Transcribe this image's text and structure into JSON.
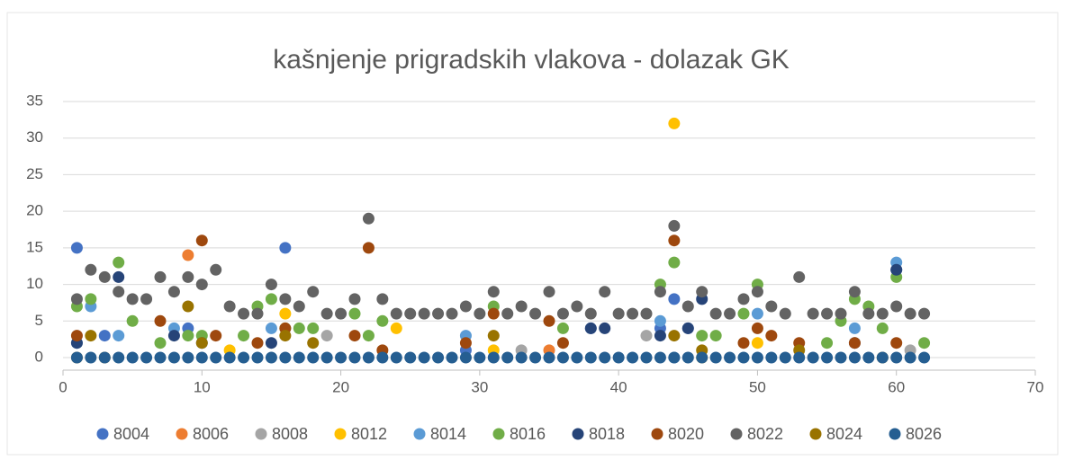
{
  "chart_data": {
    "type": "scatter",
    "title": "kašnjenje prigradskih vlakova - dolazak GK",
    "xlim": [
      0,
      70
    ],
    "xticks": [
      0,
      10,
      20,
      30,
      40,
      50,
      60,
      70
    ],
    "ylim": [
      0,
      35
    ],
    "yticks": [
      0,
      5,
      10,
      15,
      20,
      25,
      30,
      35
    ],
    "grid": true,
    "legend": "bottom",
    "series": [
      {
        "name": "8004",
        "color": "#4472c4",
        "x": [
          1,
          3,
          9,
          16,
          29,
          38,
          43,
          44,
          45,
          60
        ],
        "values": [
          15,
          3,
          4,
          15,
          1,
          4,
          4,
          8,
          4,
          12
        ]
      },
      {
        "name": "8006",
        "color": "#ed7d31",
        "x": [
          9,
          35
        ],
        "values": [
          14,
          1
        ]
      },
      {
        "name": "8008",
        "color": "#a5a5a5",
        "x": [
          19,
          33,
          42,
          61
        ],
        "values": [
          3,
          1,
          3,
          1
        ]
      },
      {
        "name": "8012",
        "color": "#ffc000",
        "x": [
          12,
          16,
          24,
          31,
          44,
          46,
          50
        ],
        "values": [
          1,
          6,
          4,
          1,
          32,
          0,
          2
        ]
      },
      {
        "name": "8014",
        "color": "#5b9bd5",
        "x": [
          1,
          2,
          4,
          8,
          15,
          29,
          43,
          44,
          50,
          57,
          60
        ],
        "values": [
          2,
          7,
          3,
          4,
          4,
          3,
          5,
          0,
          6,
          4,
          13
        ]
      },
      {
        "name": "8016",
        "color": "#70ad47",
        "x": [
          1,
          2,
          4,
          5,
          7,
          9,
          10,
          13,
          14,
          15,
          16,
          17,
          18,
          21,
          22,
          23,
          31,
          36,
          43,
          44,
          46,
          47,
          49,
          50,
          55,
          56,
          57,
          58,
          59,
          60,
          62
        ],
        "values": [
          7,
          8,
          13,
          5,
          2,
          3,
          3,
          3,
          7,
          8,
          4,
          4,
          4,
          6,
          3,
          5,
          7,
          4,
          10,
          13,
          3,
          3,
          6,
          10,
          2,
          5,
          8,
          7,
          4,
          11,
          2
        ]
      },
      {
        "name": "8018",
        "color": "#264478",
        "x": [
          1,
          4,
          8,
          10,
          15,
          38,
          39,
          43,
          45,
          46,
          57,
          60
        ],
        "values": [
          2,
          11,
          3,
          2,
          2,
          4,
          4,
          3,
          4,
          8,
          2,
          12
        ]
      },
      {
        "name": "8020",
        "color": "#9e480e",
        "x": [
          1,
          7,
          10,
          11,
          14,
          16,
          21,
          22,
          23,
          29,
          31,
          35,
          36,
          44,
          49,
          50,
          51,
          53,
          57,
          60
        ],
        "values": [
          3,
          5,
          16,
          3,
          2,
          4,
          3,
          15,
          1,
          2,
          6,
          5,
          2,
          16,
          2,
          4,
          3,
          2,
          2,
          2
        ]
      },
      {
        "name": "8022",
        "color": "#636363",
        "x": [
          1,
          2,
          3,
          4,
          5,
          6,
          7,
          8,
          9,
          10,
          11,
          12,
          13,
          14,
          15,
          16,
          17,
          18,
          19,
          20,
          21,
          22,
          23,
          24,
          25,
          26,
          27,
          28,
          29,
          30,
          31,
          32,
          33,
          34,
          35,
          36,
          37,
          38,
          39,
          40,
          41,
          42,
          43,
          44,
          45,
          46,
          47,
          48,
          49,
          50,
          51,
          52,
          53,
          54,
          55,
          56,
          57,
          58,
          59,
          60,
          61,
          62
        ],
        "values": [
          8,
          12,
          11,
          9,
          8,
          8,
          11,
          9,
          11,
          10,
          12,
          7,
          6,
          6,
          10,
          8,
          7,
          9,
          6,
          6,
          8,
          19,
          8,
          6,
          6,
          6,
          6,
          6,
          7,
          6,
          9,
          6,
          7,
          6,
          9,
          6,
          7,
          6,
          9,
          6,
          6,
          6,
          9,
          18,
          7,
          9,
          6,
          6,
          8,
          9,
          7,
          6,
          11,
          6,
          6,
          6,
          9,
          6,
          6,
          7,
          6,
          6
        ]
      },
      {
        "name": "8024",
        "color": "#997300",
        "x": [
          1,
          2,
          3,
          9,
          10,
          16,
          18,
          31,
          44,
          46,
          53,
          59
        ],
        "values": [
          0,
          3,
          0,
          7,
          2,
          3,
          2,
          3,
          3,
          1,
          1,
          0
        ]
      },
      {
        "name": "8026",
        "color": "#255e91",
        "x": [
          1,
          2,
          3,
          4,
          5,
          6,
          7,
          8,
          9,
          10,
          11,
          12,
          13,
          14,
          15,
          16,
          17,
          18,
          19,
          20,
          21,
          22,
          23,
          24,
          25,
          26,
          27,
          28,
          29,
          30,
          31,
          32,
          33,
          34,
          35,
          36,
          37,
          38,
          39,
          40,
          41,
          42,
          43,
          44,
          45,
          46,
          47,
          48,
          49,
          50,
          51,
          52,
          53,
          54,
          55,
          56,
          57,
          58,
          59,
          60,
          61,
          62
        ],
        "values": [
          0,
          0,
          0,
          0,
          0,
          0,
          0,
          0,
          0,
          0,
          0,
          0,
          0,
          0,
          0,
          0,
          0,
          0,
          0,
          0,
          0,
          0,
          0,
          0,
          0,
          0,
          0,
          0,
          0,
          0,
          0,
          0,
          0,
          0,
          0,
          0,
          0,
          0,
          0,
          0,
          0,
          0,
          0,
          0,
          0,
          0,
          0,
          0,
          0,
          0,
          0,
          0,
          0,
          0,
          0,
          0,
          0,
          0,
          0,
          0,
          0,
          0
        ]
      }
    ]
  }
}
